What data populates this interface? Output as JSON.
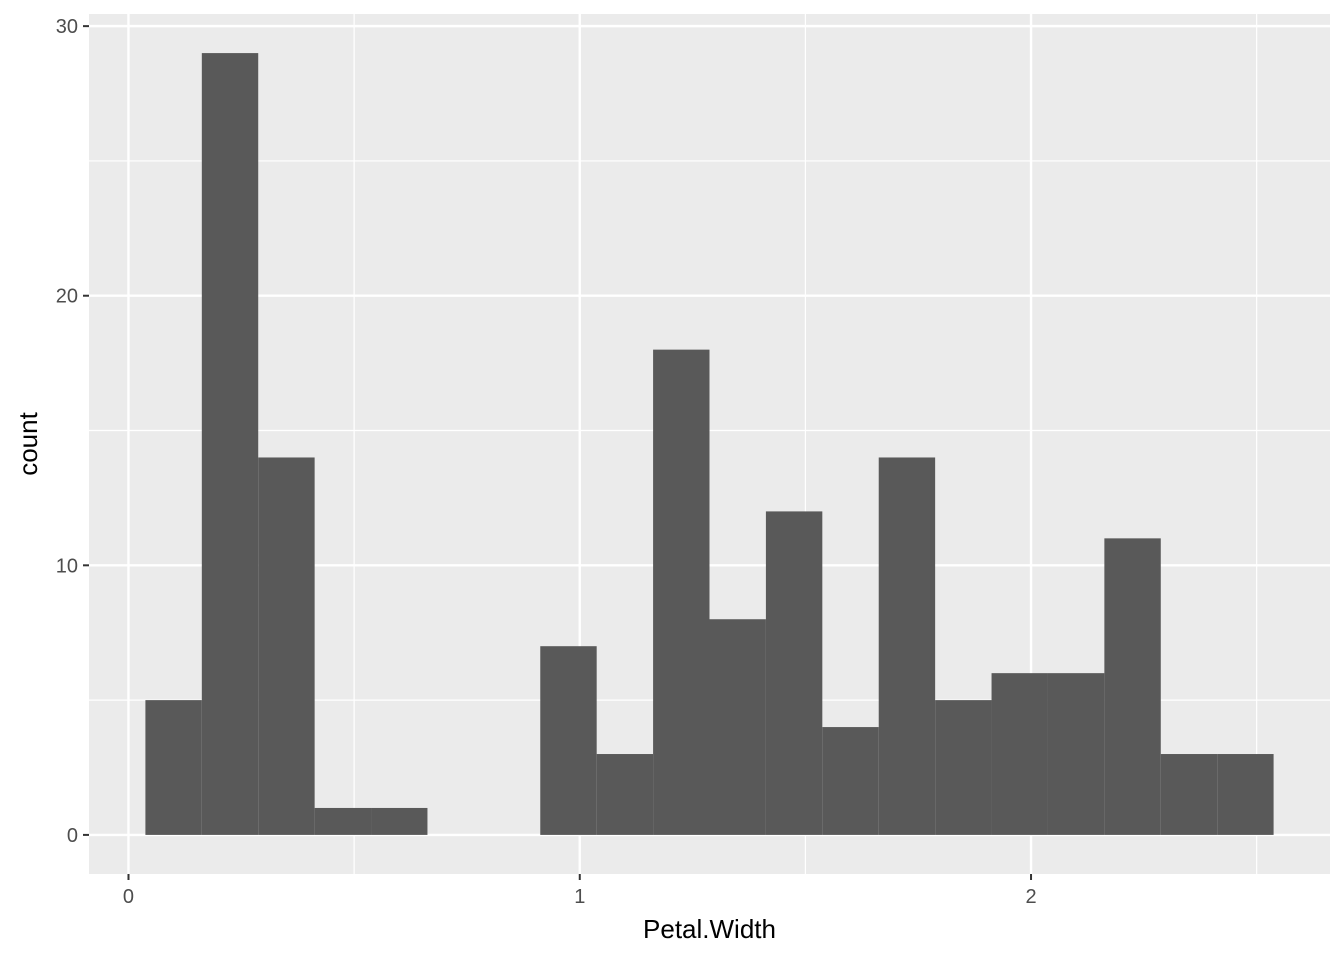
{
  "chart_data": {
    "type": "bar",
    "title": "",
    "xlabel": "Petal.Width",
    "ylabel": "count",
    "bin_width": 0.125,
    "bins": [
      {
        "x0": 0.0375,
        "x1": 0.1625,
        "count": 5
      },
      {
        "x0": 0.1625,
        "x1": 0.2875,
        "count": 29
      },
      {
        "x0": 0.2875,
        "x1": 0.4125,
        "count": 14
      },
      {
        "x0": 0.4125,
        "x1": 0.5375,
        "count": 1
      },
      {
        "x0": 0.5375,
        "x1": 0.6625,
        "count": 1
      },
      {
        "x0": 0.6625,
        "x1": 0.7875,
        "count": 0
      },
      {
        "x0": 0.7875,
        "x1": 0.9125,
        "count": 0
      },
      {
        "x0": 0.9125,
        "x1": 1.0375,
        "count": 7
      },
      {
        "x0": 1.0375,
        "x1": 1.1625,
        "count": 3
      },
      {
        "x0": 1.1625,
        "x1": 1.2875,
        "count": 18
      },
      {
        "x0": 1.2875,
        "x1": 1.4125,
        "count": 8
      },
      {
        "x0": 1.4125,
        "x1": 1.5375,
        "count": 12
      },
      {
        "x0": 1.5375,
        "x1": 1.6625,
        "count": 4
      },
      {
        "x0": 1.6625,
        "x1": 1.7875,
        "count": 14
      },
      {
        "x0": 1.7875,
        "x1": 1.9125,
        "count": 5
      },
      {
        "x0": 1.9125,
        "x1": 2.0375,
        "count": 6
      },
      {
        "x0": 2.0375,
        "x1": 2.1625,
        "count": 6
      },
      {
        "x0": 2.1625,
        "x1": 2.2875,
        "count": 11
      },
      {
        "x0": 2.2875,
        "x1": 2.4125,
        "count": 3
      },
      {
        "x0": 2.4125,
        "x1": 2.5375,
        "count": 3
      }
    ],
    "xlim": [
      -0.0875,
      2.6625
    ],
    "ylim": [
      -1.45,
      30.45
    ],
    "x_ticks": [
      0,
      1,
      2
    ],
    "x_tick_labels": [
      "0",
      "1",
      "2"
    ],
    "x_minor": [
      0.5,
      1.5,
      2.5
    ],
    "y_ticks": [
      0,
      10,
      20,
      30
    ],
    "y_tick_labels": [
      "0",
      "10",
      "20",
      "30"
    ],
    "y_minor": [
      5,
      15,
      25
    ],
    "grid": true,
    "colors": {
      "panel_background": "#ebebeb",
      "grid": "#ffffff",
      "bar_fill": "#595959",
      "tick_text": "#4d4d4d",
      "tick_mark": "#333333",
      "axis_title": "#000000"
    }
  }
}
